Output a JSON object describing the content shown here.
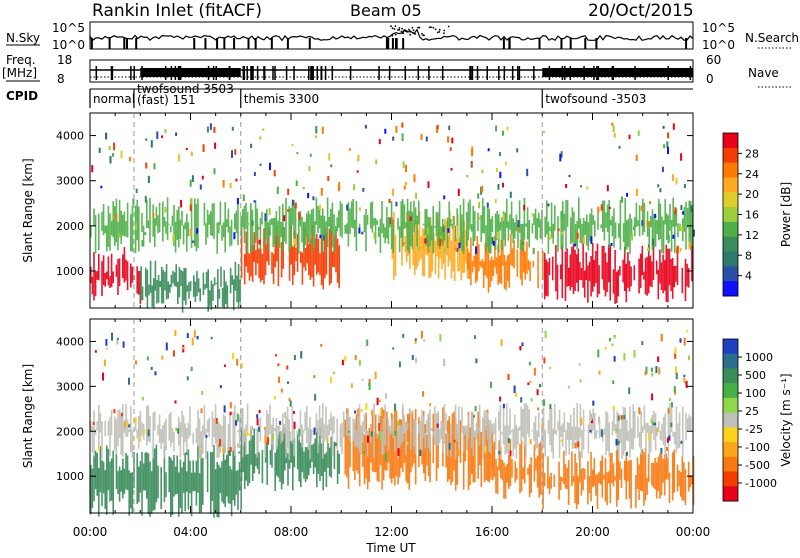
{
  "header": {
    "title": "Rankin Inlet (fitACF)",
    "beam": "Beam 05",
    "date": "20/Oct/2015"
  },
  "aux_panels": {
    "nsky_label": "N.Sky",
    "nsky_ticks": [
      "10^5",
      "10^0"
    ],
    "nsearch_label": "N.Search",
    "nsearch_ticks": [
      "10^5",
      "10^0"
    ],
    "freq_label": "Freq.",
    "freq_unit": "[MHz]",
    "freq_ticks": [
      "18",
      "8"
    ],
    "nave_label": "Nave",
    "nave_ticks": [
      "60",
      "0"
    ],
    "cpid_label": "CPID"
  },
  "cpid_segments": [
    {
      "start": 0.0,
      "label": "normal"
    },
    {
      "start": 1.75,
      "label": "twofsound 3503"
    },
    {
      "start": 1.75,
      "label": "(fast) 151"
    },
    {
      "start": 6.0,
      "label": "themis 3300"
    },
    {
      "start": 18.0,
      "label": "twofsound -3503"
    }
  ],
  "chart_data": [
    {
      "type": "heatmap",
      "ylabel": "Slant Range [km]",
      "ylim": [
        180,
        4500
      ],
      "xlim": [
        0,
        24
      ],
      "yticks": [
        1000,
        2000,
        3000,
        4000
      ],
      "colorbar": {
        "label": "Power [dB]",
        "ticks": [
          "28",
          "24",
          "20",
          "16",
          "12",
          "8",
          "4"
        ],
        "colors": [
          "#e8001a",
          "#f53c00",
          "#ff7a00",
          "#ffaa22",
          "#dccf2a",
          "#9ccd3c",
          "#4fb04a",
          "#3a8c5a",
          "#2e7b6e",
          "#2a4fa8",
          "#1010ff"
        ]
      },
      "bands": [
        {
          "x": [
            0.0,
            2.0
          ],
          "y": [
            600,
            1200
          ],
          "v": 27
        },
        {
          "x": [
            2.0,
            6.0
          ],
          "y": [
            400,
            900
          ],
          "v": 10
        },
        {
          "x": [
            6.0,
            10.0
          ],
          "y": [
            900,
            1700
          ],
          "v": 26
        },
        {
          "x": [
            12.0,
            15.0
          ],
          "y": [
            1100,
            2000
          ],
          "v": 20
        },
        {
          "x": [
            15.0,
            18.0
          ],
          "y": [
            800,
            1500
          ],
          "v": 22
        },
        {
          "x": [
            18.0,
            24.0
          ],
          "y": [
            600,
            1300
          ],
          "v": 28
        },
        {
          "x": [
            0.0,
            24.0
          ],
          "y": [
            1700,
            2300
          ],
          "v": 12
        }
      ]
    },
    {
      "type": "heatmap",
      "ylabel": "Slant Range [km]",
      "xlabel": "Time UT",
      "ylim": [
        180,
        4500
      ],
      "xlim": [
        0,
        24
      ],
      "yticks": [
        1000,
        2000,
        3000,
        4000
      ],
      "xticks": [
        "00:00",
        "04:00",
        "08:00",
        "12:00",
        "16:00",
        "20:00",
        "00:00"
      ],
      "colorbar": {
        "label": "Velocity [m s⁻¹]",
        "ticks": [
          "1000",
          "500",
          "100",
          "25",
          "-25",
          "-100",
          "-500",
          "-1000"
        ],
        "colors": [
          "#2040c0",
          "#2c6f8c",
          "#3a8c5a",
          "#48b048",
          "#8fd84a",
          "#c0c0b8",
          "#ffd21a",
          "#ffa51a",
          "#f77a10",
          "#f53c00",
          "#e8001a"
        ]
      },
      "bands": [
        {
          "x": [
            0.0,
            6.0
          ],
          "y": [
            400,
            1400
          ],
          "v": 150
        },
        {
          "x": [
            6.0,
            10.0
          ],
          "y": [
            1000,
            1800
          ],
          "v": 150
        },
        {
          "x": [
            10.0,
            16.0
          ],
          "y": [
            1000,
            2200
          ],
          "v": -300
        },
        {
          "x": [
            16.0,
            18.0
          ],
          "y": [
            800,
            1500
          ],
          "v": -300
        },
        {
          "x": [
            18.0,
            24.0
          ],
          "y": [
            600,
            1300
          ],
          "v": -200
        },
        {
          "x": [
            0.0,
            24.0
          ],
          "y": [
            1700,
            2300
          ],
          "v": 0
        }
      ]
    }
  ]
}
